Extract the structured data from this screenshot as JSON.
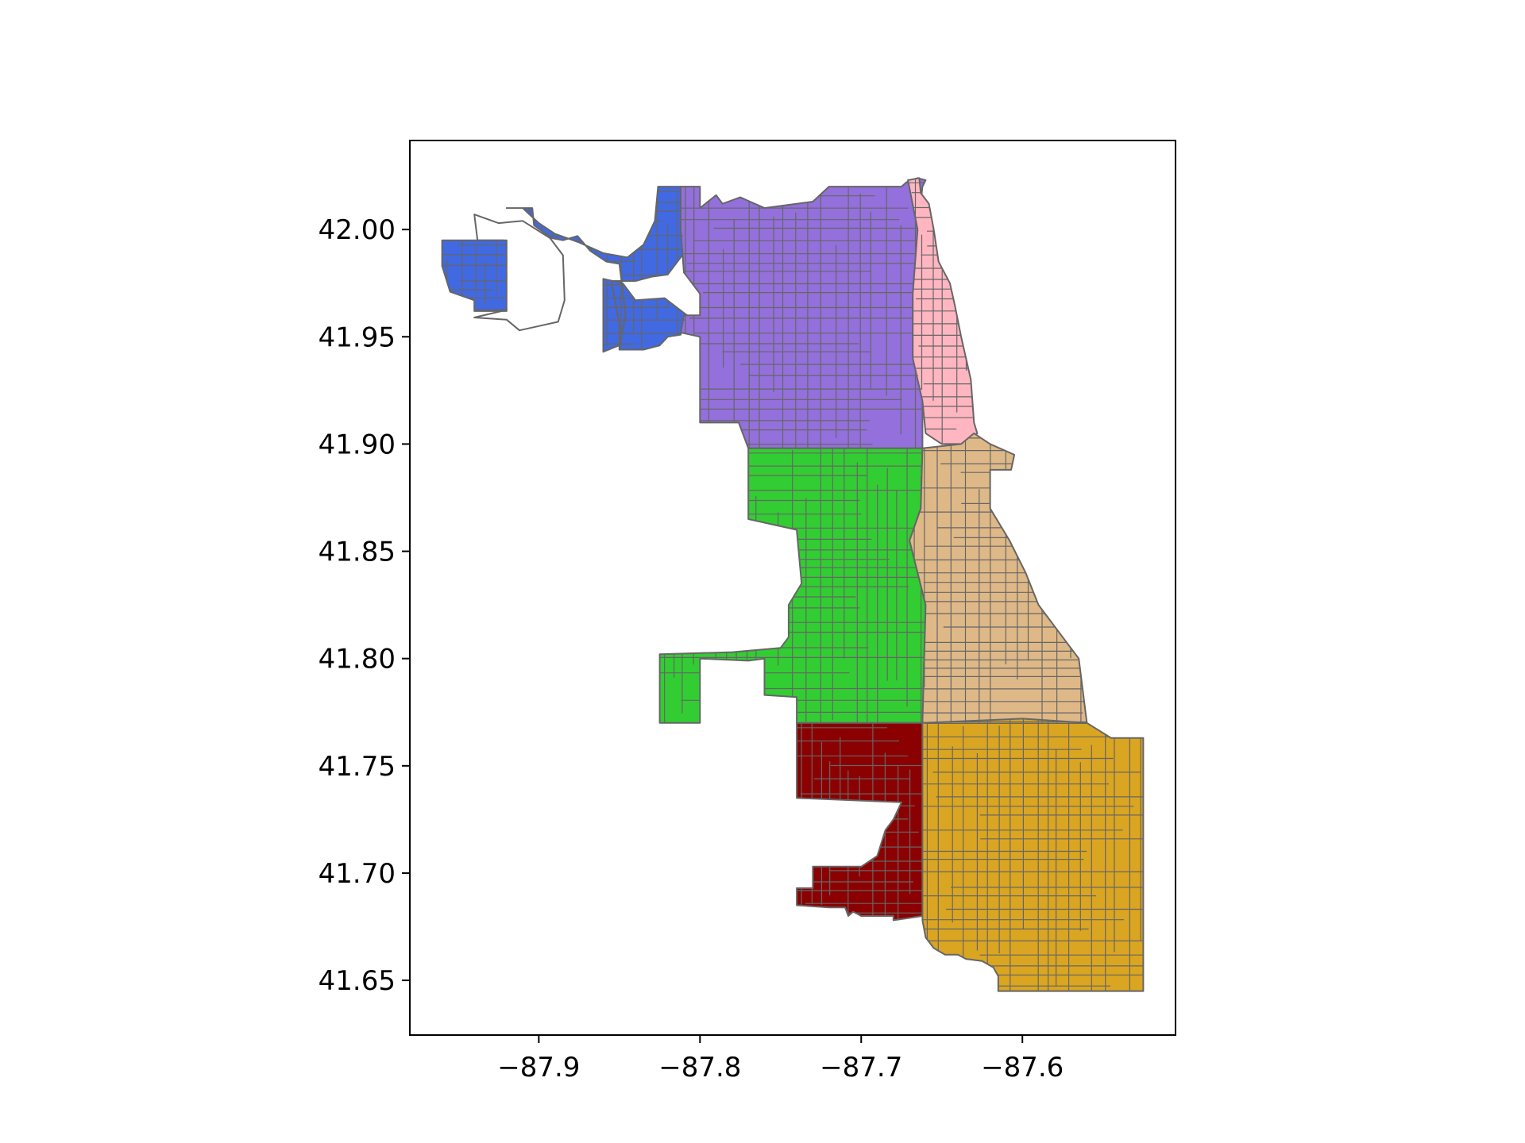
{
  "chart_data": {
    "type": "map",
    "title": "",
    "xlabel": "",
    "ylabel": "",
    "xlim": [
      -87.98,
      -87.505
    ],
    "ylim": [
      41.6245,
      42.0415
    ],
    "grid": false,
    "xticks": [
      -87.9,
      -87.8,
      -87.7,
      -87.6
    ],
    "xtick_labels": [
      "−87.9",
      "−87.8",
      "−87.7",
      "−87.6"
    ],
    "yticks": [
      41.65,
      41.7,
      41.75,
      41.8,
      41.85,
      41.9,
      41.95,
      42.0
    ],
    "ytick_labels": [
      "41.65",
      "41.70",
      "41.75",
      "41.80",
      "41.85",
      "41.90",
      "41.95",
      "42.00"
    ],
    "edge_color": "#666666",
    "regions": [
      {
        "color": "#ffffff",
        "polygon": [
          [
            -87.94,
            41.959
          ],
          [
            -87.92,
            41.958
          ],
          [
            -87.912,
            41.953
          ],
          [
            -87.9,
            41.955
          ],
          [
            -87.888,
            41.957
          ],
          [
            -87.884,
            41.967
          ],
          [
            -87.885,
            41.988
          ],
          [
            -87.893,
            41.996
          ],
          [
            -87.91,
            42.004
          ],
          [
            -87.925,
            42.003
          ],
          [
            -87.94,
            42.007
          ],
          [
            -87.938,
            41.995
          ],
          [
            -87.922,
            41.995
          ],
          [
            -87.923,
            41.962
          ]
        ]
      },
      {
        "color": "#4169e1",
        "polygon": [
          [
            -87.94,
            41.995
          ],
          [
            -87.92,
            41.995
          ],
          [
            -87.92,
            41.962
          ],
          [
            -87.94,
            41.962
          ],
          [
            -87.94,
            41.967
          ],
          [
            -87.955,
            41.971
          ],
          [
            -87.96,
            41.983
          ],
          [
            -87.96,
            41.995
          ]
        ]
      },
      {
        "color": "#4169e1",
        "polygon": [
          [
            -87.92,
            42.01
          ],
          [
            -87.904,
            42.01
          ],
          [
            -87.903,
            42.002
          ],
          [
            -87.892,
            41.996
          ],
          [
            -87.885,
            41.995
          ],
          [
            -87.876,
            41.997
          ],
          [
            -87.868,
            41.99
          ],
          [
            -87.858,
            41.985
          ],
          [
            -87.85,
            41.984
          ],
          [
            -87.846,
            41.96
          ],
          [
            -87.85,
            41.946
          ],
          [
            -87.86,
            41.943
          ],
          [
            -87.86,
            41.977
          ],
          [
            -87.848,
            41.975
          ],
          [
            -87.84,
            41.967
          ],
          [
            -87.822,
            41.968
          ],
          [
            -87.808,
            41.96
          ],
          [
            -87.81,
            41.956
          ],
          [
            -87.812,
            41.951
          ],
          [
            -87.82,
            41.95
          ],
          [
            -87.825,
            41.946
          ],
          [
            -87.835,
            41.944
          ],
          [
            -87.85,
            41.944
          ],
          [
            -87.85,
            41.956
          ],
          [
            -87.855,
            41.976
          ],
          [
            -87.84,
            41.976
          ],
          [
            -87.83,
            41.978
          ],
          [
            -87.82,
            41.979
          ],
          [
            -87.81,
            41.989
          ],
          [
            -87.812,
            42.02
          ],
          [
            -87.826,
            42.02
          ],
          [
            -87.828,
            42.004
          ],
          [
            -87.835,
            41.993
          ],
          [
            -87.845,
            41.987
          ],
          [
            -87.86,
            41.989
          ],
          [
            -87.875,
            41.994
          ],
          [
            -87.89,
            41.998
          ],
          [
            -87.9,
            42.003
          ],
          [
            -87.91,
            42.01
          ]
        ]
      },
      {
        "color": "#9370db",
        "polygon": [
          [
            -87.812,
            42.02
          ],
          [
            -87.812,
            42.0
          ],
          [
            -87.81,
            41.98
          ],
          [
            -87.805,
            41.975
          ],
          [
            -87.8,
            41.97
          ],
          [
            -87.8,
            41.96
          ],
          [
            -87.81,
            41.96
          ],
          [
            -87.812,
            41.952
          ],
          [
            -87.8,
            41.95
          ],
          [
            -87.8,
            41.91
          ],
          [
            -87.776,
            41.91
          ],
          [
            -87.77,
            41.898
          ],
          [
            -87.72,
            41.898
          ],
          [
            -87.662,
            41.898
          ],
          [
            -87.662,
            41.925
          ],
          [
            -87.668,
            41.94
          ],
          [
            -87.668,
            41.97
          ],
          [
            -87.665,
            42.0
          ],
          [
            -87.662,
            42.02
          ],
          [
            -87.66,
            42.023
          ],
          [
            -87.665,
            42.024
          ],
          [
            -87.672,
            42.022
          ],
          [
            -87.675,
            42.02
          ],
          [
            -87.72,
            42.02
          ],
          [
            -87.73,
            42.013
          ],
          [
            -87.76,
            42.01
          ],
          [
            -87.775,
            42.015
          ],
          [
            -87.786,
            42.012
          ],
          [
            -87.79,
            42.016
          ],
          [
            -87.8,
            42.01
          ],
          [
            -87.8,
            42.02
          ]
        ]
      },
      {
        "color": "#ffb6c1",
        "polygon": [
          [
            -87.671,
            42.023
          ],
          [
            -87.664,
            42.024
          ],
          [
            -87.663,
            42.017
          ],
          [
            -87.658,
            42.012
          ],
          [
            -87.655,
            42.0
          ],
          [
            -87.652,
            41.985
          ],
          [
            -87.645,
            41.975
          ],
          [
            -87.642,
            41.965
          ],
          [
            -87.638,
            41.95
          ],
          [
            -87.632,
            41.93
          ],
          [
            -87.63,
            41.91
          ],
          [
            -87.628,
            41.905
          ],
          [
            -87.638,
            41.9
          ],
          [
            -87.65,
            41.9
          ],
          [
            -87.66,
            41.905
          ],
          [
            -87.662,
            41.92
          ],
          [
            -87.668,
            41.94
          ],
          [
            -87.668,
            41.97
          ],
          [
            -87.665,
            42.0
          ]
        ]
      },
      {
        "color": "#32cd32",
        "polygon": [
          [
            -87.77,
            41.898
          ],
          [
            -87.662,
            41.898
          ],
          [
            -87.663,
            41.87
          ],
          [
            -87.67,
            41.855
          ],
          [
            -87.665,
            41.84
          ],
          [
            -87.66,
            41.825
          ],
          [
            -87.662,
            41.77
          ],
          [
            -87.74,
            41.77
          ],
          [
            -87.74,
            41.782
          ],
          [
            -87.76,
            41.783
          ],
          [
            -87.76,
            41.8
          ],
          [
            -87.77,
            41.799
          ],
          [
            -87.8,
            41.8
          ],
          [
            -87.8,
            41.77
          ],
          [
            -87.825,
            41.77
          ],
          [
            -87.825,
            41.802
          ],
          [
            -87.78,
            41.803
          ],
          [
            -87.75,
            41.805
          ],
          [
            -87.745,
            41.81
          ],
          [
            -87.745,
            41.825
          ],
          [
            -87.737,
            41.835
          ],
          [
            -87.74,
            41.86
          ],
          [
            -87.77,
            41.865
          ]
        ]
      },
      {
        "color": "#deb887",
        "polygon": [
          [
            -87.662,
            41.898
          ],
          [
            -87.638,
            41.9
          ],
          [
            -87.63,
            41.905
          ],
          [
            -87.62,
            41.9
          ],
          [
            -87.605,
            41.895
          ],
          [
            -87.607,
            41.888
          ],
          [
            -87.62,
            41.888
          ],
          [
            -87.62,
            41.87
          ],
          [
            -87.608,
            41.855
          ],
          [
            -87.598,
            41.84
          ],
          [
            -87.59,
            41.825
          ],
          [
            -87.575,
            41.81
          ],
          [
            -87.565,
            41.8
          ],
          [
            -87.56,
            41.77
          ],
          [
            -87.662,
            41.77
          ],
          [
            -87.66,
            41.825
          ],
          [
            -87.665,
            41.84
          ],
          [
            -87.67,
            41.855
          ],
          [
            -87.663,
            41.87
          ]
        ]
      },
      {
        "color": "#8b0000",
        "polygon": [
          [
            -87.74,
            41.77
          ],
          [
            -87.662,
            41.77
          ],
          [
            -87.662,
            41.68
          ],
          [
            -87.68,
            41.678
          ],
          [
            -87.68,
            41.68
          ],
          [
            -87.7,
            41.68
          ],
          [
            -87.705,
            41.682
          ],
          [
            -87.708,
            41.68
          ],
          [
            -87.71,
            41.684
          ],
          [
            -87.72,
            41.684
          ],
          [
            -87.74,
            41.685
          ],
          [
            -87.74,
            41.693
          ],
          [
            -87.73,
            41.693
          ],
          [
            -87.73,
            41.703
          ],
          [
            -87.7,
            41.703
          ],
          [
            -87.69,
            41.708
          ],
          [
            -87.685,
            41.72
          ],
          [
            -87.68,
            41.725
          ],
          [
            -87.675,
            41.733
          ],
          [
            -87.74,
            41.735
          ]
        ]
      },
      {
        "color": "#daa520",
        "polygon": [
          [
            -87.662,
            41.77
          ],
          [
            -87.6,
            41.772
          ],
          [
            -87.56,
            41.77
          ],
          [
            -87.545,
            41.763
          ],
          [
            -87.525,
            41.763
          ],
          [
            -87.525,
            41.645
          ],
          [
            -87.55,
            41.645
          ],
          [
            -87.55,
            41.645
          ],
          [
            -87.59,
            41.645
          ],
          [
            -87.615,
            41.645
          ],
          [
            -87.615,
            41.652
          ],
          [
            -87.618,
            41.656
          ],
          [
            -87.625,
            41.659
          ],
          [
            -87.635,
            41.66
          ],
          [
            -87.64,
            41.662
          ],
          [
            -87.648,
            41.662
          ],
          [
            -87.655,
            41.665
          ],
          [
            -87.66,
            41.67
          ],
          [
            -87.662,
            41.678
          ],
          [
            -87.662,
            41.68
          ]
        ]
      }
    ]
  }
}
